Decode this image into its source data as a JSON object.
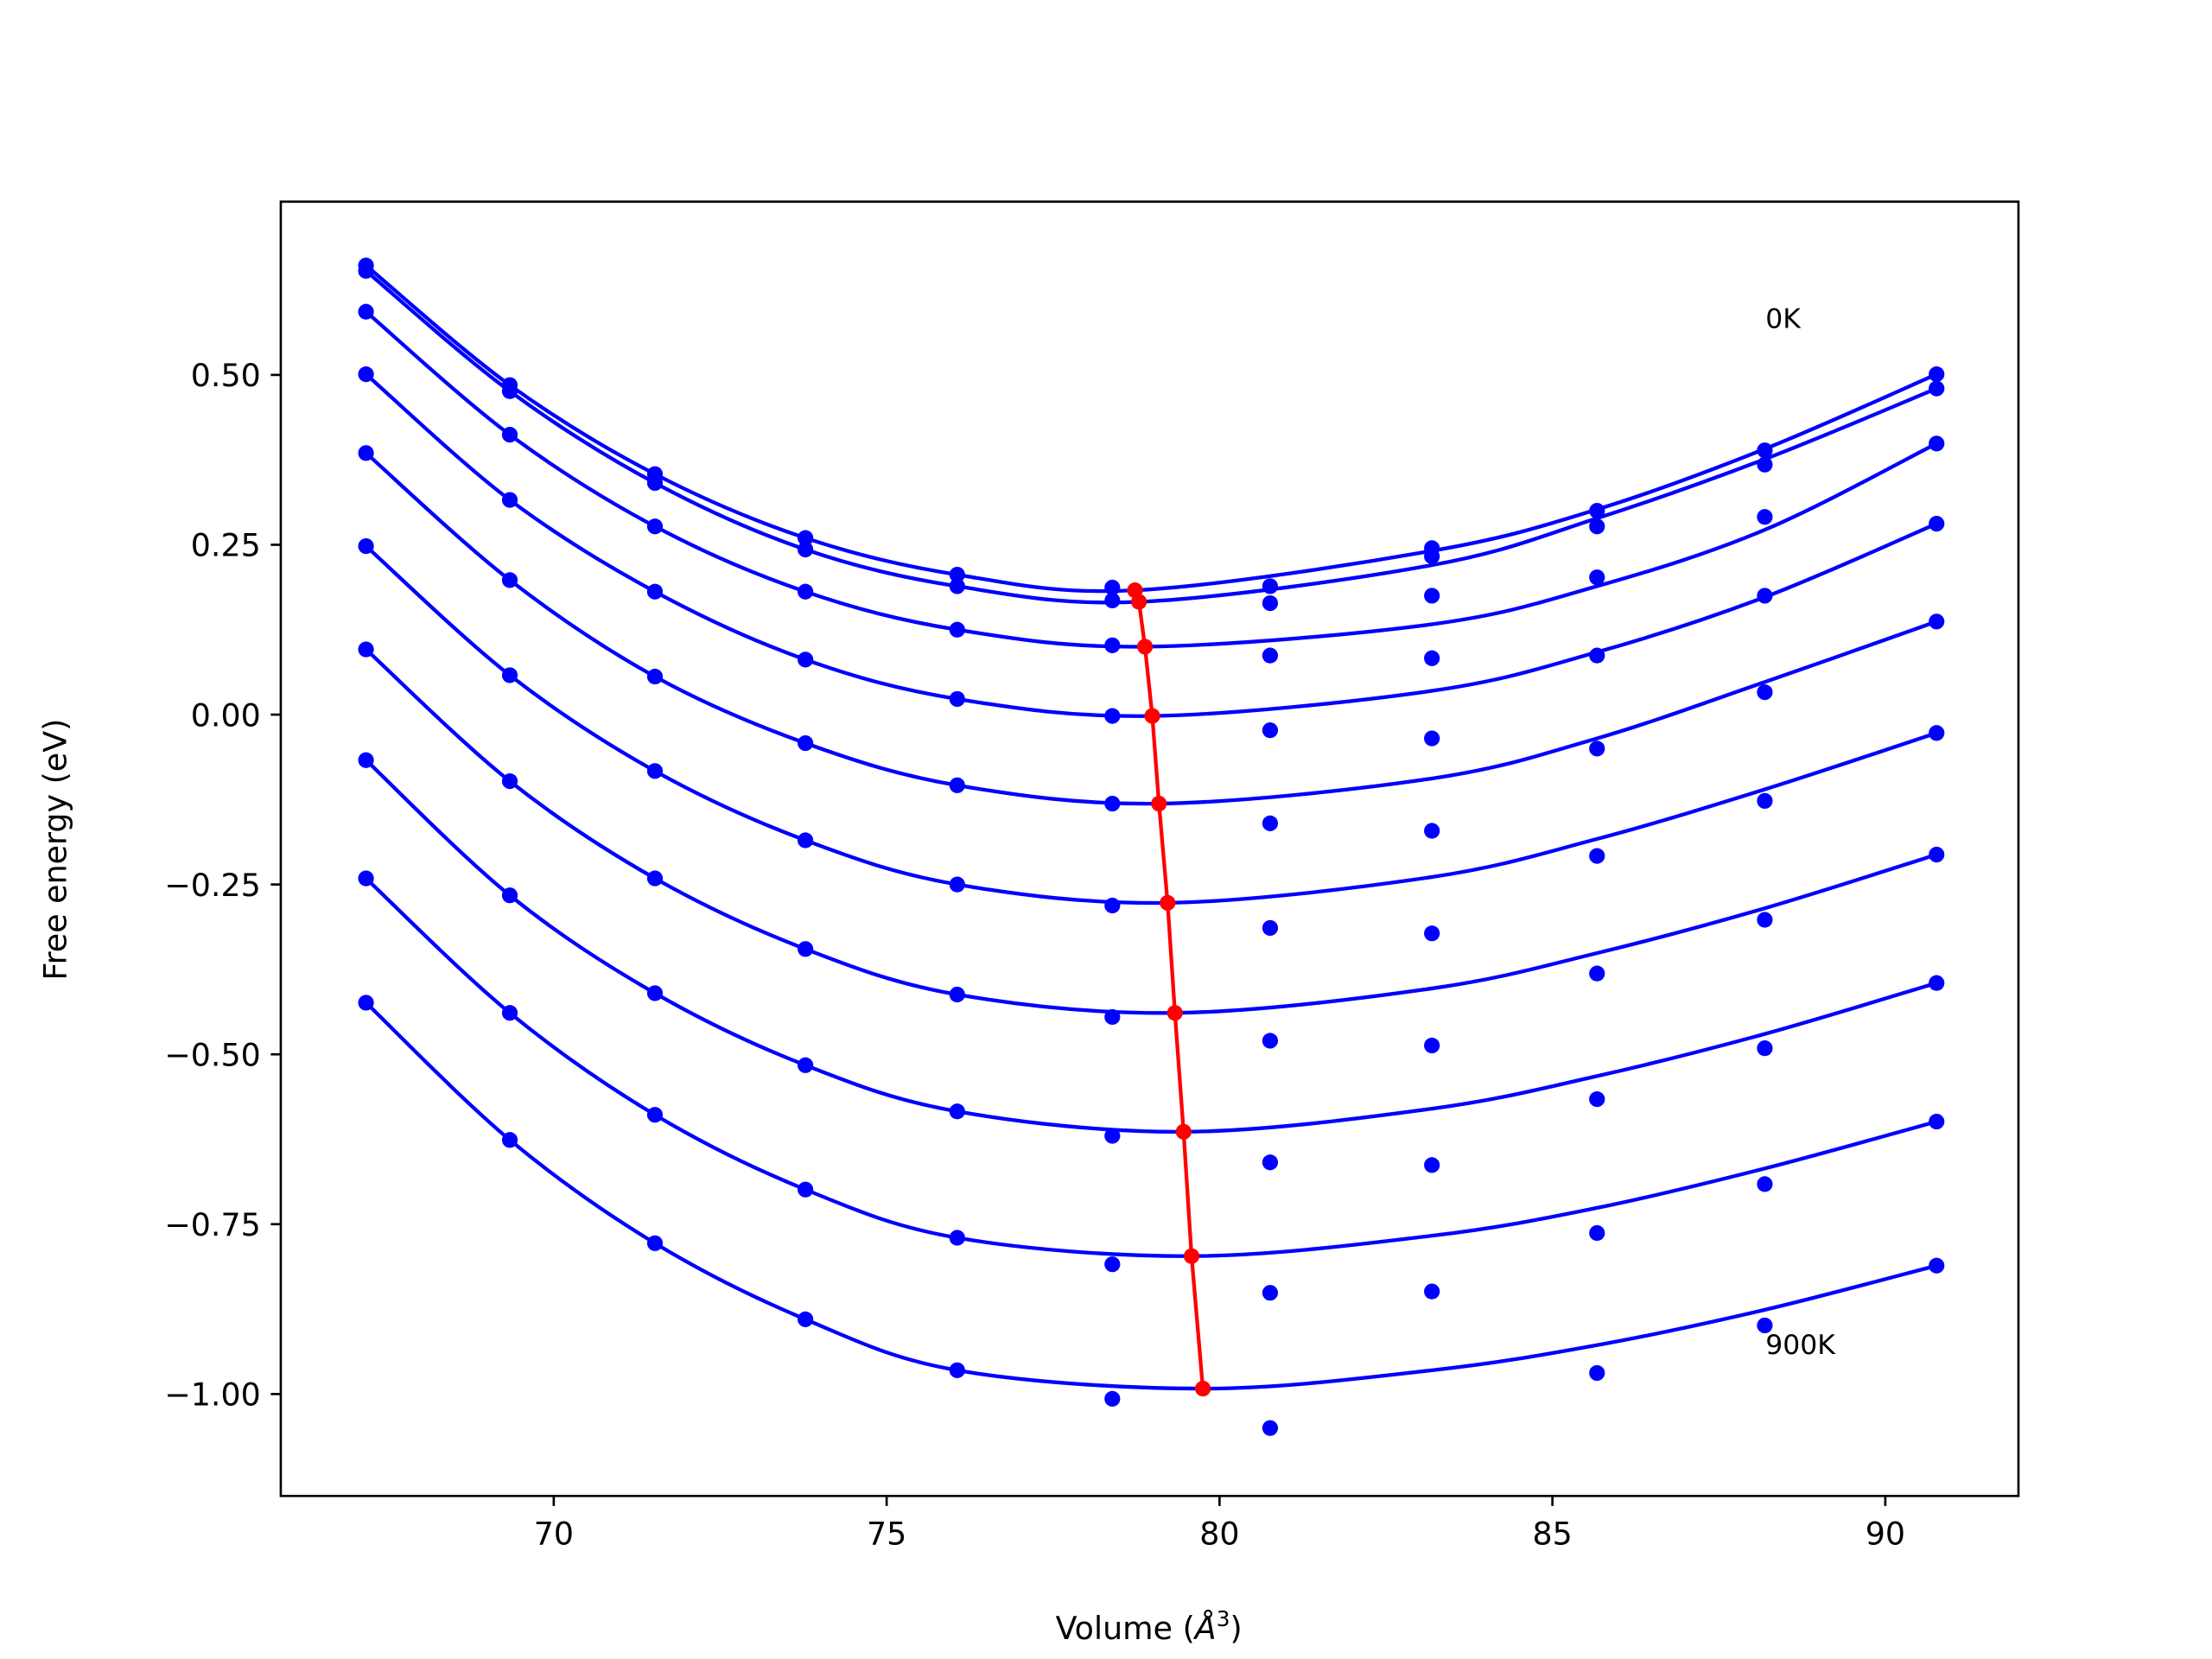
{
  "chart_data": {
    "type": "line",
    "title": "",
    "xlabel": "Volume (Å³)",
    "xlabel_parts": {
      "main": "Volume (",
      "unit": "Å",
      "exp": "3",
      "close": ")"
    },
    "ylabel": "Free energy (eV)",
    "xlim": [
      65.9,
      92.0
    ],
    "ylim": [
      -1.15,
      0.755
    ],
    "xticks": [
      70,
      75,
      80,
      85,
      90
    ],
    "xtick_labels": [
      "70",
      "75",
      "80",
      "85",
      "90"
    ],
    "yticks": [
      -1.0,
      -0.75,
      -0.5,
      -0.25,
      0.0,
      0.25,
      0.5
    ],
    "ytick_labels": [
      "−1.00",
      "−0.75",
      "−0.50",
      "−0.25",
      "0.00",
      "0.25",
      "0.50"
    ],
    "grid": false,
    "colors": {
      "series": "#0000ff",
      "minima": "#ff0000",
      "axes": "#000000"
    },
    "annotations": [
      {
        "text": "0K",
        "x": 88.2,
        "y": 0.565
      },
      {
        "text": "900K",
        "x": 88.2,
        "y": -0.945
      }
    ],
    "volumes": [
      67.18,
      69.34,
      71.52,
      73.78,
      76.06,
      78.39,
      80.76,
      83.19,
      85.67,
      88.19,
      90.77
    ],
    "series": [
      {
        "points": [
          0.661,
          0.485,
          0.354,
          0.26,
          0.206,
          0.187,
          0.189,
          0.245,
          0.3,
          0.389,
          0.501
        ],
        "fit": [
          [
            67.18,
            0.661
          ],
          [
            69.34,
            0.485
          ],
          [
            71.52,
            0.354
          ],
          [
            73.78,
            0.26
          ],
          [
            76.06,
            0.206
          ],
          [
            78.73,
            0.183
          ],
          [
            83.19,
            0.241
          ],
          [
            85.67,
            0.302
          ],
          [
            88.19,
            0.391
          ],
          [
            90.77,
            0.501
          ]
        ]
      },
      {
        "points": [
          0.653,
          0.476,
          0.341,
          0.243,
          0.189,
          0.168,
          0.164,
          0.233,
          0.277,
          0.368,
          0.48
        ],
        "fit": [
          [
            67.18,
            0.653
          ],
          [
            69.34,
            0.476
          ],
          [
            71.52,
            0.341
          ],
          [
            73.78,
            0.243
          ],
          [
            76.06,
            0.189
          ],
          [
            78.79,
            0.166
          ],
          [
            83.19,
            0.22
          ],
          [
            85.67,
            0.289
          ],
          [
            88.19,
            0.376
          ],
          [
            90.77,
            0.48
          ]
        ]
      },
      {
        "points": [
          0.593,
          0.412,
          0.277,
          0.181,
          0.125,
          0.102,
          0.087,
          0.175,
          0.202,
          0.291,
          0.399
        ],
        "fit": [
          [
            67.18,
            0.593
          ],
          [
            69.34,
            0.412
          ],
          [
            71.52,
            0.277
          ],
          [
            73.78,
            0.181
          ],
          [
            76.06,
            0.125
          ],
          [
            78.88,
            0.1
          ],
          [
            83.19,
            0.133
          ],
          [
            85.67,
            0.189
          ],
          [
            88.19,
            0.272
          ],
          [
            90.77,
            0.399
          ]
        ]
      },
      {
        "points": [
          0.501,
          0.316,
          0.181,
          0.081,
          0.023,
          -0.002,
          -0.023,
          0.083,
          0.087,
          0.175,
          0.281
        ],
        "fit": [
          [
            67.18,
            0.501
          ],
          [
            69.34,
            0.316
          ],
          [
            71.52,
            0.181
          ],
          [
            73.78,
            0.081
          ],
          [
            76.06,
            0.023
          ],
          [
            78.99,
            -0.002
          ],
          [
            83.19,
            0.035
          ],
          [
            85.67,
            0.092
          ],
          [
            88.19,
            0.173
          ],
          [
            90.77,
            0.281
          ]
        ]
      },
      {
        "points": [
          0.385,
          0.198,
          0.056,
          -0.042,
          -0.104,
          -0.131,
          -0.16,
          -0.035,
          -0.05,
          0.033,
          0.137
        ],
        "fit": [
          [
            67.18,
            0.385
          ],
          [
            69.34,
            0.198
          ],
          [
            71.52,
            0.056
          ],
          [
            73.78,
            -0.042
          ],
          [
            76.06,
            -0.104
          ],
          [
            79.09,
            -0.131
          ],
          [
            83.19,
            -0.094
          ],
          [
            85.67,
            -0.035
          ],
          [
            88.19,
            0.048
          ],
          [
            90.77,
            0.137
          ]
        ]
      },
      {
        "points": [
          0.248,
          0.058,
          -0.083,
          -0.185,
          -0.25,
          -0.281,
          -0.314,
          -0.171,
          -0.208,
          -0.127,
          -0.027
        ],
        "fit": [
          [
            67.18,
            0.248
          ],
          [
            69.34,
            0.058
          ],
          [
            71.52,
            -0.083
          ],
          [
            73.78,
            -0.185
          ],
          [
            76.06,
            -0.25
          ],
          [
            79.22,
            -0.277
          ],
          [
            83.19,
            -0.239
          ],
          [
            85.67,
            -0.183
          ],
          [
            88.19,
            -0.11
          ],
          [
            90.77,
            -0.027
          ]
        ]
      },
      {
        "points": [
          0.096,
          -0.098,
          -0.241,
          -0.345,
          -0.412,
          -0.445,
          -0.48,
          -0.322,
          -0.381,
          -0.302,
          -0.206
        ],
        "fit": [
          [
            67.18,
            0.096
          ],
          [
            69.34,
            -0.098
          ],
          [
            71.52,
            -0.241
          ],
          [
            73.78,
            -0.345
          ],
          [
            76.06,
            -0.412
          ],
          [
            79.33,
            -0.439
          ],
          [
            83.19,
            -0.403
          ],
          [
            85.67,
            -0.351
          ],
          [
            88.19,
            -0.285
          ],
          [
            90.77,
            -0.206
          ]
        ]
      },
      {
        "points": [
          -0.067,
          -0.266,
          -0.41,
          -0.516,
          -0.584,
          -0.62,
          -0.659,
          -0.487,
          -0.566,
          -0.491,
          -0.395
        ],
        "fit": [
          [
            67.18,
            -0.067
          ],
          [
            69.34,
            -0.266
          ],
          [
            71.52,
            -0.41
          ],
          [
            73.78,
            -0.516
          ],
          [
            76.06,
            -0.584
          ],
          [
            79.46,
            -0.614
          ],
          [
            83.19,
            -0.58
          ],
          [
            85.67,
            -0.532
          ],
          [
            88.19,
            -0.47
          ],
          [
            90.77,
            -0.395
          ]
        ]
      },
      {
        "points": [
          -0.241,
          -0.439,
          -0.589,
          -0.699,
          -0.77,
          -0.809,
          -0.851,
          -0.663,
          -0.763,
          -0.691,
          -0.599
        ],
        "fit": [
          [
            67.18,
            -0.241
          ],
          [
            69.34,
            -0.439
          ],
          [
            71.52,
            -0.589
          ],
          [
            73.78,
            -0.699
          ],
          [
            76.06,
            -0.77
          ],
          [
            79.58,
            -0.797
          ],
          [
            83.19,
            -0.767
          ],
          [
            85.67,
            -0.726
          ],
          [
            88.19,
            -0.668
          ],
          [
            90.77,
            -0.599
          ]
        ]
      },
      {
        "points": [
          -0.424,
          -0.626,
          -0.778,
          -0.89,
          -0.965,
          -1.007,
          -1.05,
          -0.849,
          -0.969,
          -0.899,
          -0.811
        ],
        "fit": [
          [
            67.18,
            -0.424
          ],
          [
            69.34,
            -0.626
          ],
          [
            71.52,
            -0.778
          ],
          [
            73.78,
            -0.89
          ],
          [
            76.06,
            -0.965
          ],
          [
            79.75,
            -0.992
          ],
          [
            83.19,
            -0.965
          ],
          [
            85.67,
            -0.928
          ],
          [
            88.19,
            -0.876
          ],
          [
            90.77,
            -0.811
          ]
        ]
      }
    ],
    "minima": [
      [
        78.73,
        0.183
      ],
      [
        78.79,
        0.166
      ],
      [
        78.88,
        0.1
      ],
      [
        78.99,
        -0.002
      ],
      [
        79.09,
        -0.131
      ],
      [
        79.22,
        -0.277
      ],
      [
        79.33,
        -0.439
      ],
      [
        79.46,
        -0.614
      ],
      [
        79.58,
        -0.797
      ],
      [
        79.75,
        -0.992
      ]
    ]
  }
}
